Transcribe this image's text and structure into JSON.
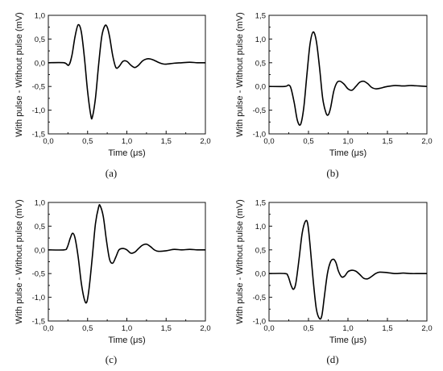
{
  "chart_data": [
    {
      "type": "line",
      "caption": "(a)",
      "xlabel": "Time (μs)",
      "ylabel": "With pulse - Without pulse (mV)",
      "xlim": [
        0.0,
        2.0
      ],
      "ylim": [
        -1.5,
        1.0
      ],
      "xticks": [
        "0,0",
        "0,5",
        "1,0",
        "1,5",
        "2,0"
      ],
      "yticks": [
        "-1,5",
        "-1,0",
        "-0,5",
        "0,0",
        "0,5",
        "1,0"
      ],
      "grid": false,
      "series": [
        {
          "x": [
            0.0,
            0.2,
            0.26,
            0.3,
            0.34,
            0.38,
            0.42,
            0.46,
            0.5,
            0.54,
            0.56,
            0.6,
            0.64,
            0.68,
            0.72,
            0.75,
            0.78,
            0.82,
            0.86,
            0.9,
            0.95,
            1.0,
            1.05,
            1.1,
            1.15,
            1.2,
            1.25,
            1.3,
            1.35,
            1.4,
            1.45,
            1.5,
            1.6,
            1.7,
            1.8,
            1.9,
            2.0
          ],
          "y": [
            0.0,
            0.0,
            -0.05,
            0.15,
            0.55,
            0.8,
            0.65,
            0.1,
            -0.6,
            -1.1,
            -1.15,
            -0.75,
            -0.05,
            0.55,
            0.78,
            0.75,
            0.55,
            0.15,
            -0.1,
            -0.08,
            0.03,
            0.03,
            -0.05,
            -0.1,
            -0.05,
            0.04,
            0.08,
            0.08,
            0.05,
            0.01,
            -0.02,
            -0.03,
            -0.01,
            0.0,
            0.01,
            0.0,
            0.0
          ]
        }
      ]
    },
    {
      "type": "line",
      "caption": "(b)",
      "xlabel": "Time (μs)",
      "ylabel": "With pulse - Without pulse (mV)",
      "xlim": [
        0.0,
        2.0
      ],
      "ylim": [
        -1.0,
        1.5
      ],
      "xticks": [
        "0,0",
        "0,5",
        "1,0",
        "1,5",
        "2,0"
      ],
      "yticks": [
        "-1,0",
        "-0,5",
        "0,0",
        "0,5",
        "1,0",
        "1,5"
      ],
      "grid": false,
      "series": [
        {
          "x": [
            0.0,
            0.2,
            0.25,
            0.28,
            0.32,
            0.36,
            0.4,
            0.44,
            0.48,
            0.52,
            0.56,
            0.6,
            0.64,
            0.68,
            0.72,
            0.75,
            0.78,
            0.82,
            0.86,
            0.9,
            0.95,
            1.0,
            1.05,
            1.1,
            1.15,
            1.2,
            1.25,
            1.3,
            1.35,
            1.4,
            1.5,
            1.6,
            1.7,
            1.8,
            1.9,
            2.0
          ],
          "y": [
            0.0,
            0.0,
            0.03,
            -0.05,
            -0.35,
            -0.72,
            -0.8,
            -0.45,
            0.25,
            0.9,
            1.15,
            0.95,
            0.4,
            -0.25,
            -0.55,
            -0.6,
            -0.45,
            -0.1,
            0.08,
            0.11,
            0.05,
            -0.05,
            -0.08,
            0.0,
            0.09,
            0.11,
            0.06,
            -0.02,
            -0.05,
            -0.04,
            0.0,
            0.02,
            0.01,
            0.02,
            0.01,
            0.0
          ]
        }
      ]
    },
    {
      "type": "line",
      "caption": "(c)",
      "xlabel": "Time (μs)",
      "ylabel": "With pulse - Without pulse (mV)",
      "xlim": [
        0.0,
        2.0
      ],
      "ylim": [
        -1.5,
        1.0
      ],
      "xticks": [
        "0,0",
        "0,5",
        "1,0",
        "1,5",
        "2,0"
      ],
      "yticks": [
        "-1,5",
        "-1,0",
        "-0,5",
        "0,0",
        "0,5",
        "1,0"
      ],
      "grid": false,
      "series": [
        {
          "x": [
            0.0,
            0.2,
            0.24,
            0.28,
            0.31,
            0.34,
            0.38,
            0.42,
            0.46,
            0.49,
            0.52,
            0.56,
            0.6,
            0.64,
            0.66,
            0.7,
            0.74,
            0.78,
            0.82,
            0.86,
            0.9,
            0.95,
            1.0,
            1.05,
            1.1,
            1.15,
            1.2,
            1.25,
            1.3,
            1.35,
            1.4,
            1.5,
            1.6,
            1.7,
            1.8,
            1.9,
            2.0
          ],
          "y": [
            0.0,
            0.0,
            0.05,
            0.25,
            0.35,
            0.25,
            -0.15,
            -0.7,
            -1.05,
            -1.1,
            -0.8,
            -0.15,
            0.55,
            0.9,
            0.93,
            0.7,
            0.2,
            -0.2,
            -0.28,
            -0.15,
            0.0,
            0.03,
            0.0,
            -0.07,
            -0.05,
            0.03,
            0.1,
            0.12,
            0.07,
            0.0,
            -0.03,
            -0.02,
            0.01,
            0.0,
            0.01,
            0.0,
            0.0
          ]
        }
      ]
    },
    {
      "type": "line",
      "caption": "(d)",
      "xlabel": "Time (μs)",
      "ylabel": "With pulse - Without pulse (mV)",
      "xlim": [
        0.0,
        2.0
      ],
      "ylim": [
        -1.0,
        1.5
      ],
      "xticks": [
        "0,0",
        "0,5",
        "1,0",
        "1,5",
        "2,0"
      ],
      "yticks": [
        "-1,0",
        "-0,5",
        "0,0",
        "0,5",
        "1,0",
        "1,5"
      ],
      "grid": false,
      "series": [
        {
          "x": [
            0.0,
            0.2,
            0.24,
            0.28,
            0.31,
            0.34,
            0.38,
            0.42,
            0.46,
            0.49,
            0.52,
            0.56,
            0.6,
            0.64,
            0.67,
            0.7,
            0.74,
            0.78,
            0.82,
            0.85,
            0.88,
            0.92,
            0.96,
            1.0,
            1.05,
            1.1,
            1.15,
            1.2,
            1.25,
            1.3,
            1.35,
            1.4,
            1.5,
            1.6,
            1.7,
            1.8,
            1.9,
            2.0
          ],
          "y": [
            0.0,
            0.0,
            -0.05,
            -0.25,
            -0.33,
            -0.2,
            0.3,
            0.85,
            1.1,
            1.05,
            0.6,
            -0.15,
            -0.75,
            -0.95,
            -0.88,
            -0.5,
            0.0,
            0.25,
            0.3,
            0.22,
            0.05,
            -0.07,
            -0.05,
            0.04,
            0.07,
            0.05,
            -0.02,
            -0.1,
            -0.11,
            -0.06,
            0.0,
            0.03,
            0.02,
            0.0,
            0.01,
            0.0,
            0.0,
            0.0
          ]
        }
      ]
    }
  ]
}
